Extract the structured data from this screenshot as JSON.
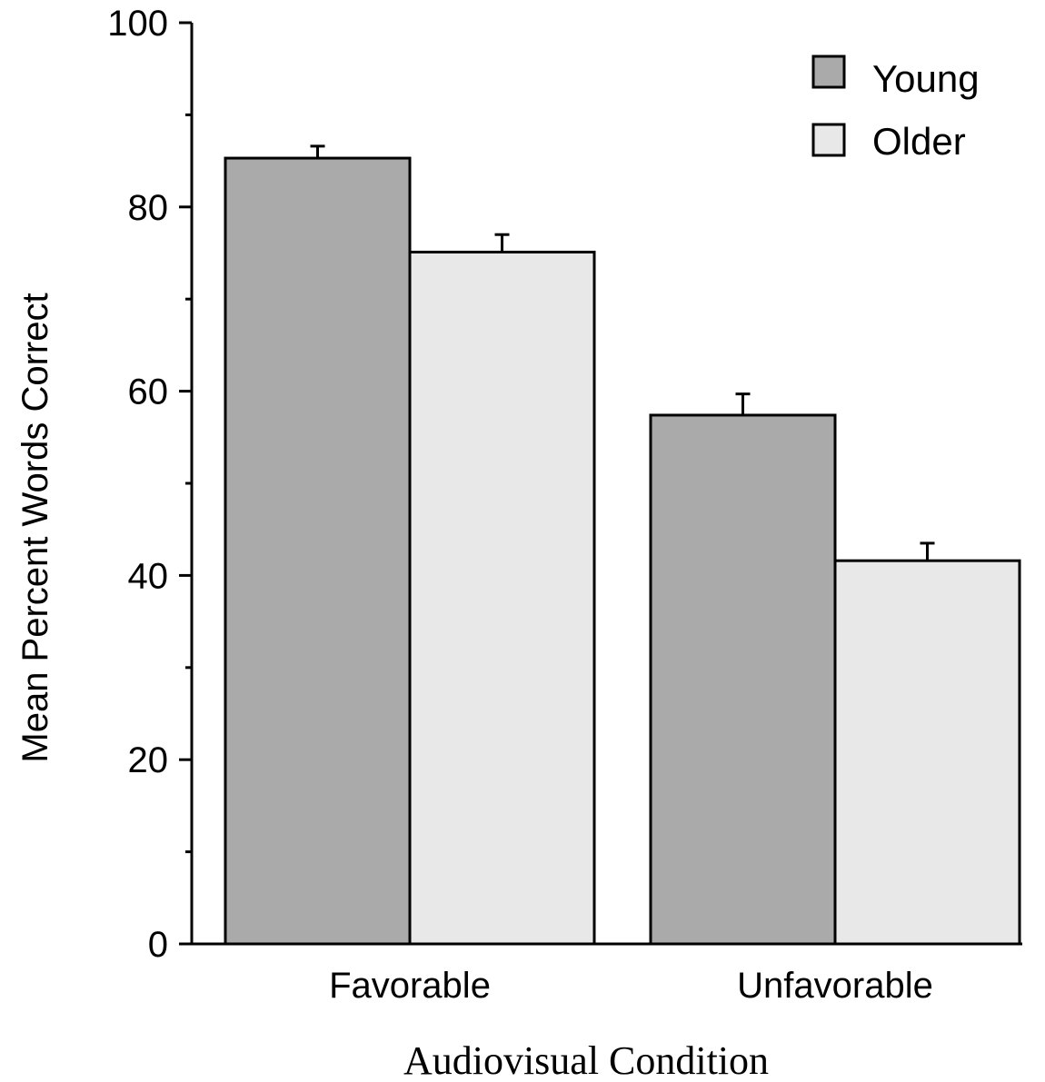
{
  "chart_data": {
    "type": "bar",
    "categories": [
      "Favorable",
      "Unfavorable"
    ],
    "series": [
      {
        "name": "Young",
        "values": [
          85.3,
          57.4
        ],
        "errors": [
          1.3,
          2.3
        ],
        "color": "#aaaaaa"
      },
      {
        "name": "Older",
        "values": [
          75.1,
          41.6
        ],
        "errors": [
          1.9,
          1.9
        ],
        "color": "#e8e8e8"
      }
    ],
    "xlabel": "Audiovisual Condition",
    "ylabel": "Mean Percent Words Correct",
    "ylim": [
      0,
      100
    ],
    "yticks": [
      0,
      20,
      40,
      60,
      80,
      100
    ],
    "grid": false,
    "legend_position": "top-right"
  }
}
